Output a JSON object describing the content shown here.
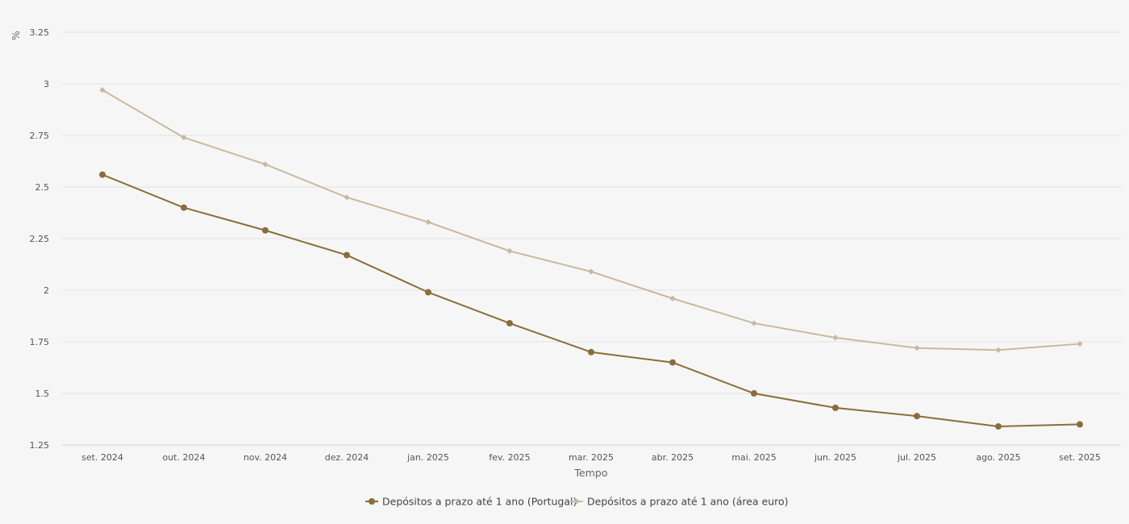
{
  "chart_data": {
    "type": "line",
    "title": "",
    "xlabel": "Tempo",
    "ylabel": "%",
    "ylim": [
      1.25,
      3.25
    ],
    "yticks": [
      "1.25",
      "1.5",
      "1.75",
      "2",
      "2.25",
      "2.5",
      "2.75",
      "3",
      "3.25"
    ],
    "ytick_values": [
      1.25,
      1.5,
      1.75,
      2,
      2.25,
      2.5,
      2.75,
      3,
      3.25
    ],
    "grid": true,
    "legend_position": "bottom-center",
    "categories": [
      "set. 2024",
      "out. 2024",
      "nov. 2024",
      "dez. 2024",
      "jan. 2025",
      "fev. 2025",
      "mar. 2025",
      "abr. 2025",
      "mai. 2025",
      "jun. 2025",
      "jul. 2025",
      "ago. 2025",
      "set. 2025"
    ],
    "series": [
      {
        "name": "Depósitos a prazo até 1 ano (Portugal)",
        "color": "#8b6d3a",
        "marker": "circle",
        "values": [
          2.56,
          2.4,
          2.29,
          2.17,
          1.99,
          1.84,
          1.7,
          1.65,
          1.5,
          1.43,
          1.39,
          1.34,
          1.35
        ]
      },
      {
        "name": "Depósitos a prazo até 1 ano (área euro)",
        "color": "#c9b99b",
        "marker": "diamond",
        "values": [
          2.97,
          2.74,
          2.61,
          2.45,
          2.33,
          2.19,
          2.09,
          1.96,
          1.84,
          1.77,
          1.72,
          1.71,
          1.74
        ]
      }
    ]
  }
}
